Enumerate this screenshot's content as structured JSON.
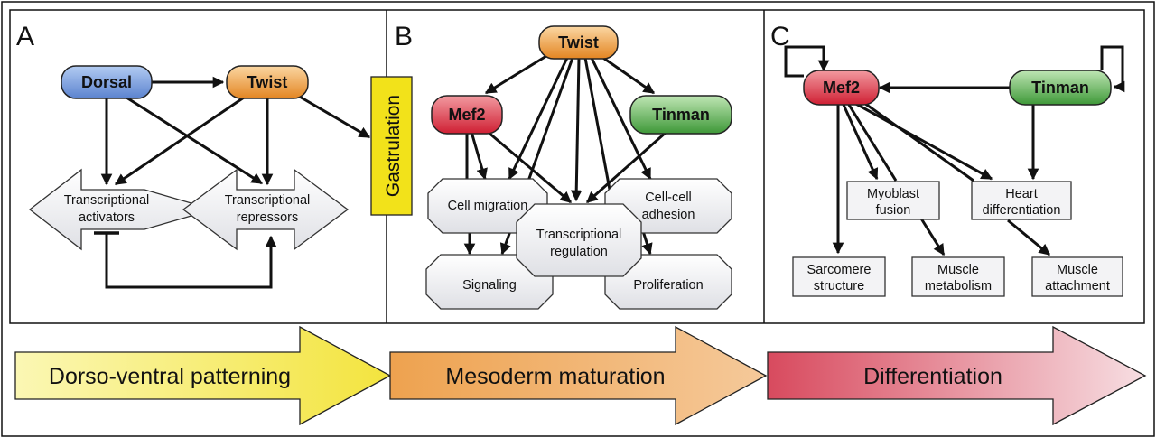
{
  "panels": {
    "a": {
      "letter": "A",
      "dorsal": "Dorsal",
      "twist": "Twist",
      "activators": [
        "Transcriptional",
        "activators"
      ],
      "repressors": [
        "Transcriptional",
        "repressors"
      ],
      "gastrulation": "Gastrulation"
    },
    "b": {
      "letter": "B",
      "twist": "Twist",
      "mef2": "Mef2",
      "tinman": "Tinman",
      "cell_migration": "Cell migration",
      "cell_cell_adhesion": [
        "Cell-cell",
        "adhesion"
      ],
      "transcriptional_regulation": [
        "Transcriptional",
        "regulation"
      ],
      "signaling": "Signaling",
      "proliferation": "Proliferation"
    },
    "c": {
      "letter": "C",
      "mef2": "Mef2",
      "tinman": "Tinman",
      "myoblast_fusion": [
        "Myoblast",
        "fusion"
      ],
      "heart_differentiation": [
        "Heart",
        "differentiation"
      ],
      "sarcomere_structure": [
        "Sarcomere",
        "structure"
      ],
      "muscle_metabolism": [
        "Muscle",
        "metabolism"
      ],
      "muscle_attachment": [
        "Muscle",
        "attachment"
      ]
    }
  },
  "stages": [
    "Dorso-ventral patterning",
    "Mesoderm maturation",
    "Differentiation"
  ],
  "colors": {
    "dorsal": "#6f95d8",
    "twist": "#e8902a",
    "mef2": "#d8283a",
    "tinman": "#3f9a3a",
    "gastrulation": "#f2e21a",
    "stage1": "#f6ec52",
    "stage2": "#e8922e",
    "stage3": "#d84a5e"
  }
}
